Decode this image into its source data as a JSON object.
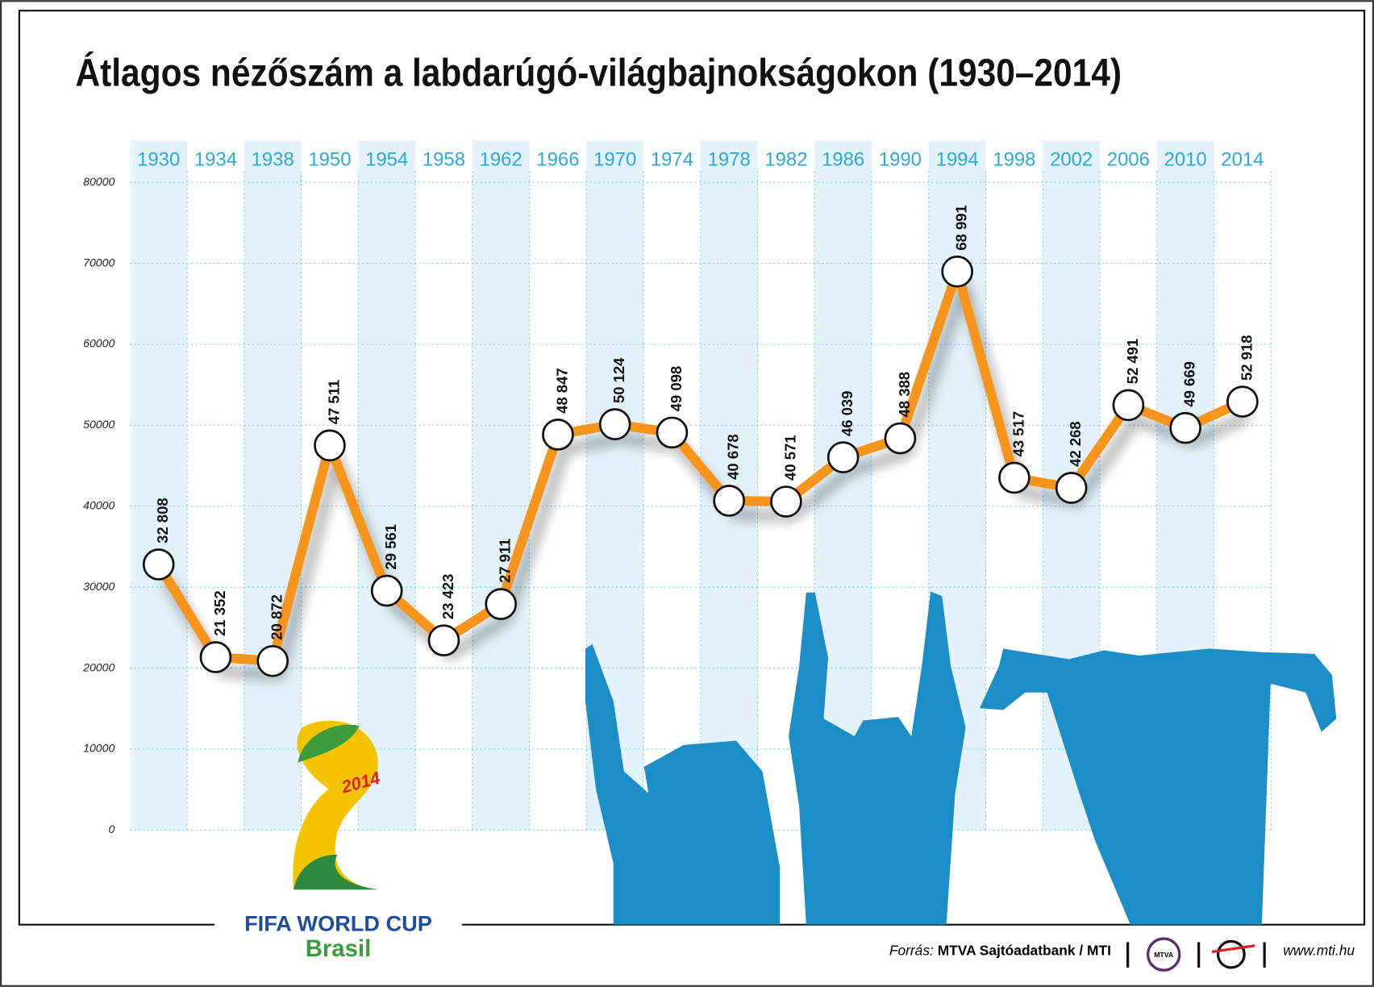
{
  "chart_data": {
    "type": "line",
    "title": "Átlagos nézőszám a labdarúgó-világbajnokságokon (1930–2014)",
    "categories": [
      "1930",
      "1934",
      "1938",
      "1950",
      "1954",
      "1958",
      "1962",
      "1966",
      "1970",
      "1974",
      "1978",
      "1982",
      "1986",
      "1990",
      "1994",
      "1998",
      "2002",
      "2006",
      "2010",
      "2014"
    ],
    "series": [
      {
        "name": "Átlagos nézőszám",
        "color": "#f7941d",
        "values": [
          32808,
          21352,
          20872,
          47511,
          29561,
          23423,
          27911,
          48847,
          50124,
          49098,
          40678,
          40571,
          46039,
          48388,
          68991,
          43517,
          42268,
          52491,
          49669,
          52918
        ],
        "value_labels": [
          "32 808",
          "21 352",
          "20 872",
          "47 511",
          "29 561",
          "23 423",
          "27 911",
          "48 847",
          "50 124",
          "49 098",
          "40 678",
          "40 571",
          "46 039",
          "48 388",
          "68 991",
          "43 517",
          "42 268",
          "52 491",
          "49 669",
          "52 918"
        ]
      }
    ],
    "ylim": [
      0,
      80000
    ],
    "yticks": [
      0,
      10000,
      20000,
      30000,
      40000,
      50000,
      60000,
      70000,
      80000
    ],
    "grid": true,
    "logo_year": "2014",
    "logo_text": "FIFA WORLD CUP",
    "logo_subtext": "Brasil",
    "source_prefix": "Forrás:",
    "source": "MTVA Sajtóadatbank / MTI",
    "badge": "MTVA",
    "website": "www.mti.hu"
  }
}
